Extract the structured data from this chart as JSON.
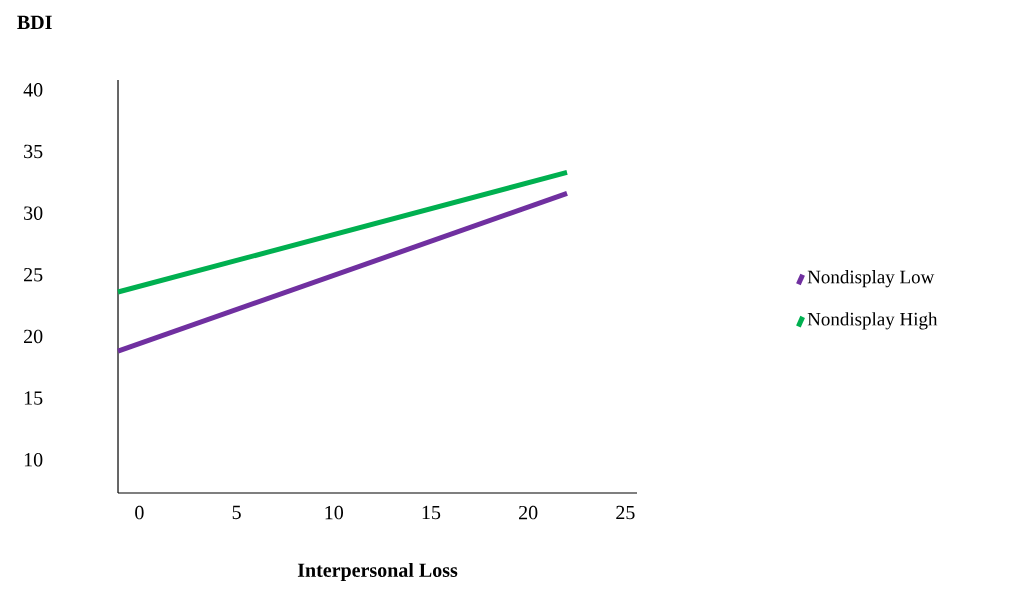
{
  "chart_data": {
    "type": "line",
    "title": "BDI",
    "xlabel": "Interpersonal Loss",
    "x": [
      -1.1,
      22
    ],
    "series": [
      {
        "name": "Nondisplay Low",
        "color": "#7030a0",
        "values": [
          18.8,
          31.6
        ]
      },
      {
        "name": "Nondisplay High",
        "color": "#00b050",
        "values": [
          23.6,
          33.3
        ]
      }
    ],
    "xlim": [
      -1.1,
      25.6
    ],
    "ylim": [
      7.3,
      40.8
    ],
    "xticks": [
      0,
      5,
      10,
      15,
      20,
      25
    ],
    "yticks": [
      10,
      15,
      20,
      25,
      30,
      35,
      40
    ],
    "legend": "right",
    "marker": "none",
    "line_style": "solid"
  }
}
